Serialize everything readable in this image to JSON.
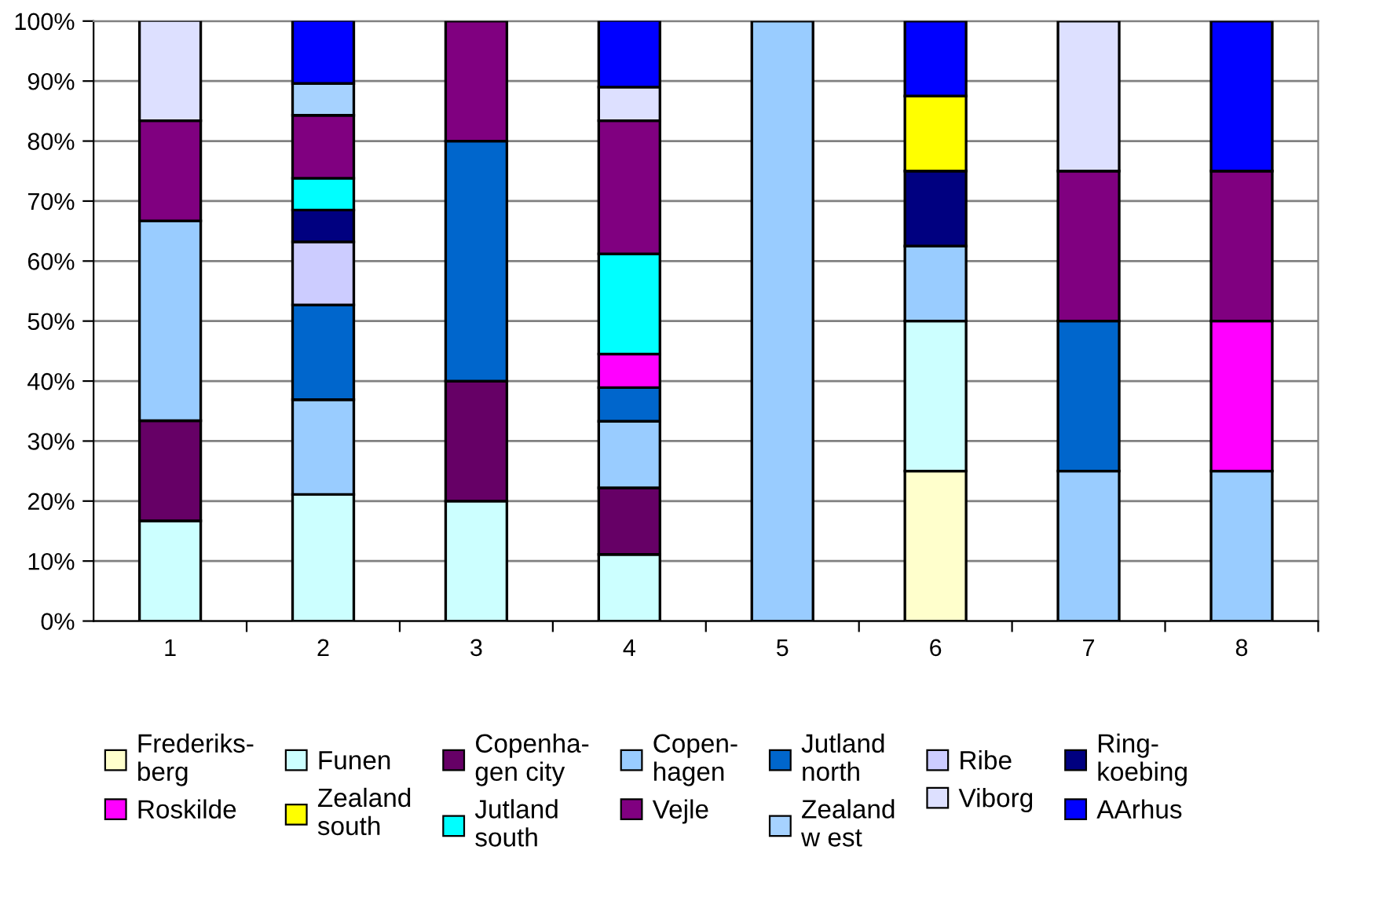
{
  "chart_data": {
    "type": "bar",
    "stacked": true,
    "categories": [
      "1",
      "2",
      "3",
      "4",
      "5",
      "6",
      "7",
      "8"
    ],
    "ylim": [
      0,
      100
    ],
    "yticks": [
      {
        "value": 0,
        "label": "0%"
      },
      {
        "value": 10,
        "label": "10%"
      },
      {
        "value": 20,
        "label": "20%"
      },
      {
        "value": 30,
        "label": "30%"
      },
      {
        "value": 40,
        "label": "40%"
      },
      {
        "value": 50,
        "label": "50%"
      },
      {
        "value": 60,
        "label": "60%"
      },
      {
        "value": 70,
        "label": "70%"
      },
      {
        "value": 80,
        "label": "80%"
      },
      {
        "value": 90,
        "label": "90%"
      },
      {
        "value": 100,
        "label": "100%"
      }
    ],
    "grid": "y",
    "legend": "bottom",
    "series": [
      {
        "name": "Frederiks-\nberg",
        "color": "#ffffcc",
        "values": [
          null,
          null,
          null,
          null,
          null,
          25,
          null,
          null
        ]
      },
      {
        "name": "Funen",
        "color": "#ccffff",
        "values": [
          16.7,
          21.1,
          20,
          11.1,
          null,
          25,
          null,
          null
        ]
      },
      {
        "name": "Copenha-\ngen city",
        "color": "#660066",
        "values": [
          16.7,
          null,
          20,
          11.1,
          null,
          null,
          null,
          null
        ]
      },
      {
        "name": "Copen-\nhagen",
        "color": "#99ccff",
        "values": [
          33.3,
          15.8,
          null,
          11.1,
          100,
          12.5,
          25,
          25
        ]
      },
      {
        "name": "Jutland\nnorth",
        "color": "#0066cc",
        "values": [
          null,
          15.8,
          40,
          5.6,
          null,
          null,
          25,
          null
        ]
      },
      {
        "name": "Ribe",
        "color": "#ccccff",
        "values": [
          null,
          10.5,
          null,
          null,
          null,
          null,
          null,
          null
        ]
      },
      {
        "name": "Ring-\nkoebing",
        "color": "#000080",
        "values": [
          null,
          5.3,
          null,
          null,
          null,
          12.5,
          null,
          null
        ]
      },
      {
        "name": "Roskilde",
        "color": "#ff00ff",
        "values": [
          null,
          null,
          null,
          5.6,
          null,
          null,
          null,
          25
        ]
      },
      {
        "name": "Zealand\nsouth",
        "color": "#ffff00",
        "values": [
          null,
          null,
          null,
          null,
          null,
          12.5,
          null,
          null
        ]
      },
      {
        "name": "Jutland\nsouth",
        "color": "#00ffff",
        "values": [
          null,
          5.3,
          null,
          16.7,
          null,
          null,
          null,
          null
        ]
      },
      {
        "name": "Vejle",
        "color": "#800080",
        "values": [
          16.7,
          10.5,
          20,
          22.2,
          null,
          null,
          25,
          25
        ]
      },
      {
        "name": "Zealand\nw est",
        "color": "#a6d2ff",
        "values": [
          null,
          5.3,
          null,
          null,
          null,
          null,
          null,
          null
        ]
      },
      {
        "name": "Viborg",
        "color": "#dde0ff",
        "values": [
          16.7,
          null,
          null,
          5.6,
          null,
          null,
          25,
          null
        ]
      },
      {
        "name": "AArhus",
        "color": "#0000ff",
        "values": [
          null,
          10.5,
          null,
          11.1,
          null,
          12.5,
          null,
          25
        ]
      }
    ]
  }
}
